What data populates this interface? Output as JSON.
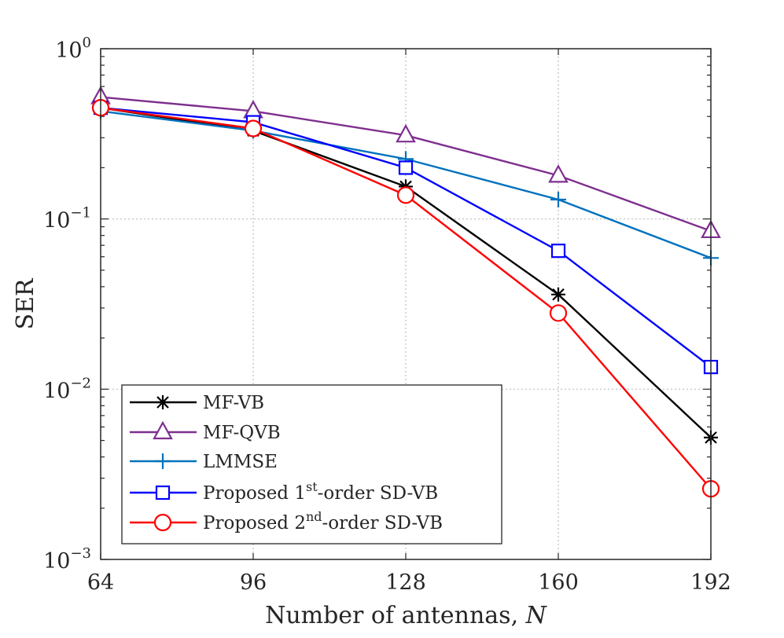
{
  "chart_data": {
    "type": "line",
    "xlabel": "Number of antennas, ",
    "xlabel_var": "N",
    "ylabel": "SER",
    "yscale": "log",
    "xlim": [
      64,
      192
    ],
    "ylim": [
      0.001,
      1
    ],
    "grid": true,
    "legend_position": "bottom-left",
    "x": [
      64,
      96,
      128,
      160,
      192
    ],
    "x_tick_labels": [
      "64",
      "96",
      "128",
      "160",
      "192"
    ],
    "y_ticks": [
      {
        "value": 1,
        "base": "10",
        "exp": "0"
      },
      {
        "value": 0.1,
        "base": "10",
        "exp": "−1"
      },
      {
        "value": 0.01,
        "base": "10",
        "exp": "−2"
      },
      {
        "value": 0.001,
        "base": "10",
        "exp": "−3"
      }
    ],
    "series": [
      {
        "key": "mfvb",
        "name": "MF-VB",
        "color": "#000000",
        "marker": "asterisk",
        "values": [
          0.45,
          0.33,
          0.155,
          0.036,
          0.0052
        ]
      },
      {
        "key": "mfqvb",
        "name": "MF-QVB",
        "color": "#7e2f8e",
        "marker": "triangle",
        "values": [
          0.52,
          0.43,
          0.31,
          0.18,
          0.085
        ]
      },
      {
        "key": "lmmse",
        "name": "LMMSE",
        "color": "#0072bd",
        "marker": "plus",
        "values": [
          0.43,
          0.33,
          0.225,
          0.13,
          0.059
        ]
      },
      {
        "key": "sd1",
        "name": "Proposed 1st-order SD-VB",
        "color": "#0000ff",
        "marker": "square",
        "values": [
          0.45,
          0.37,
          0.2,
          0.065,
          0.0135
        ]
      },
      {
        "key": "sd2",
        "name": "Proposed 2nd-order SD-VB",
        "color": "#ff0000",
        "marker": "circle",
        "values": [
          0.45,
          0.34,
          0.138,
          0.028,
          0.0026
        ]
      }
    ],
    "legend": {
      "mfvb": "MF-VB",
      "mfqvb": "MF-QVB",
      "lmmse": "LMMSE",
      "sd1": {
        "pre": "Proposed 1",
        "sup": "st",
        "post": "-order SD-VB"
      },
      "sd2": {
        "pre": "Proposed 2",
        "sup": "nd",
        "post": "-order SD-VB"
      }
    }
  }
}
